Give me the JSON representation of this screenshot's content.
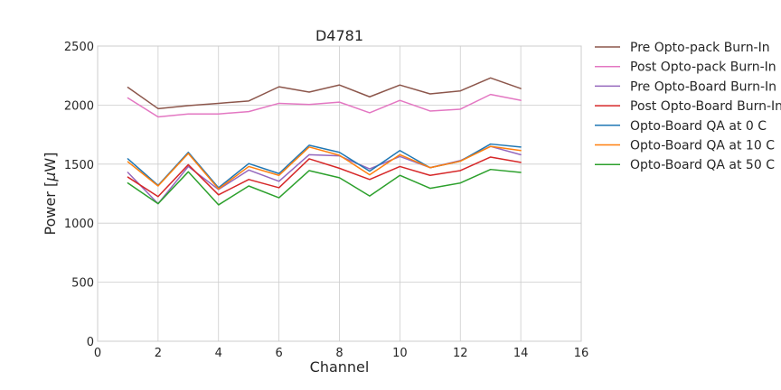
{
  "chart_data": {
    "type": "line",
    "title": "D4781",
    "xlabel": "Channel",
    "ylabel_prefix": "Power [",
    "ylabel_mu": "μ",
    "ylabel_suffix": "W]",
    "xlim": [
      0,
      16
    ],
    "ylim": [
      0,
      2500
    ],
    "xticks": [
      0,
      2,
      4,
      6,
      8,
      10,
      12,
      14,
      16
    ],
    "yticks": [
      0,
      500,
      1000,
      1500,
      2000,
      2500
    ],
    "grid": true,
    "legend_position": "outside-right",
    "x": [
      1,
      2,
      3,
      4,
      5,
      6,
      7,
      8,
      9,
      10,
      11,
      12,
      13,
      14
    ],
    "series": [
      {
        "name": "Pre Opto-pack Burn-In",
        "color": "#8c564b",
        "values": [
          2150,
          1970,
          1995,
          2015,
          2035,
          2155,
          2110,
          2170,
          2070,
          2170,
          2095,
          2120,
          2230,
          2140
        ]
      },
      {
        "name": "Post Opto-pack Burn-In",
        "color": "#e377c2",
        "values": [
          2060,
          1900,
          1925,
          1925,
          1945,
          2015,
          2005,
          2025,
          1935,
          2040,
          1950,
          1965,
          2090,
          2040
        ]
      },
      {
        "name": "Pre Opto-Board Burn-In",
        "color": "#9467bd",
        "values": [
          1430,
          1165,
          1480,
          1285,
          1450,
          1355,
          1580,
          1570,
          1460,
          1565,
          1470,
          1530,
          1650,
          1580
        ]
      },
      {
        "name": "Post Opto-Board Burn-In",
        "color": "#d62728",
        "values": [
          1390,
          1225,
          1495,
          1240,
          1370,
          1300,
          1545,
          1465,
          1370,
          1480,
          1405,
          1445,
          1560,
          1515
        ]
      },
      {
        "name": "Opto-Board QA at 0 C",
        "color": "#1f77b4",
        "values": [
          1545,
          1320,
          1600,
          1300,
          1505,
          1420,
          1660,
          1600,
          1440,
          1615,
          1470,
          1525,
          1670,
          1645
        ]
      },
      {
        "name": "Opto-Board QA at 10 C",
        "color": "#ff7f0e",
        "values": [
          1520,
          1315,
          1590,
          1290,
          1480,
          1405,
          1645,
          1575,
          1410,
          1580,
          1470,
          1525,
          1650,
          1615
        ]
      },
      {
        "name": "Opto-Board QA at 50 C",
        "color": "#2ca02c",
        "values": [
          1340,
          1165,
          1435,
          1155,
          1315,
          1215,
          1445,
          1385,
          1230,
          1405,
          1295,
          1340,
          1455,
          1430
        ]
      }
    ]
  }
}
